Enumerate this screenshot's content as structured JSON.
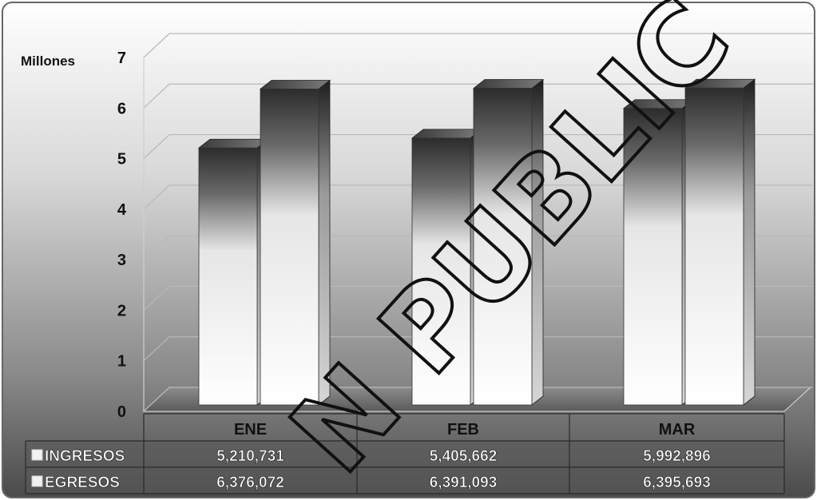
{
  "chart_data": {
    "type": "bar",
    "ylabel": "Millones",
    "ylim": [
      0,
      7
    ],
    "yticks": [
      0,
      1,
      2,
      3,
      4,
      5,
      6,
      7
    ],
    "categories": [
      "ENE",
      "FEB",
      "MAR"
    ],
    "series": [
      {
        "name": "INGRESOS",
        "values": [
          5210731,
          5405662,
          5992896
        ],
        "display": [
          "5,210,731",
          "5,405,662",
          "5,992,896"
        ]
      },
      {
        "name": "EGRESOS",
        "values": [
          6376072,
          6391093,
          6395693
        ],
        "display": [
          "6,376,072",
          "6,391,093",
          "6,395,693"
        ]
      }
    ],
    "units_divisor": 1000000,
    "grid": true,
    "style": "3d-bars-with-data-table",
    "legend_placement": "data-table-left",
    "colors": {
      "bar_face": "#ffffff",
      "bar_shadow": "#3a3a3a",
      "background_top": "#ffffff",
      "background_bottom": "#555555"
    }
  },
  "watermark": "N PUBLIC"
}
